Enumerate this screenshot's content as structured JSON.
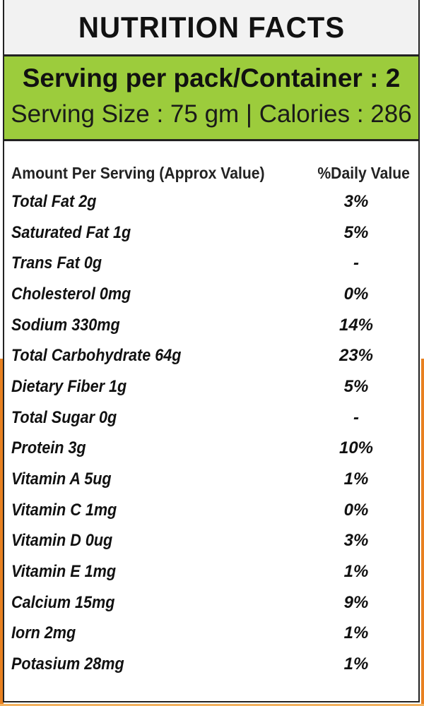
{
  "title": "NUTRITION FACTS",
  "serving": {
    "line1": "Serving per pack/Container : 2",
    "line2": "Serving Size : 75 gm | Calories : 286"
  },
  "table": {
    "header_left": "Amount Per Serving (Approx Value)",
    "header_right": "%Daily Value",
    "rows": [
      {
        "name": "Total Fat 2g",
        "value": "3%"
      },
      {
        "name": "Saturated Fat 1g",
        "value": "5%"
      },
      {
        "name": "Trans Fat 0g",
        "value": "-"
      },
      {
        "name": "Cholesterol 0mg",
        "value": "0%"
      },
      {
        "name": "Sodium 330mg",
        "value": "14%"
      },
      {
        "name": "Total Carbohydrate 64g",
        "value": "23%"
      },
      {
        "name": "Dietary Fiber 1g",
        "value": "5%"
      },
      {
        "name": "Total Sugar 0g",
        "value": "-"
      },
      {
        "name": "Protein 3g",
        "value": "10%"
      },
      {
        "name": "Vitamin A 5ug",
        "value": "1%"
      },
      {
        "name": "Vitamin C 1mg",
        "value": "0%"
      },
      {
        "name": "Vitamin D 0ug",
        "value": "3%"
      },
      {
        "name": "Vitamin E 1mg",
        "value": "1%"
      },
      {
        "name": "Calcium 15mg",
        "value": "9%"
      },
      {
        "name": "Iorn 2mg",
        "value": "1%"
      },
      {
        "name": "Potasium 28mg",
        "value": "1%"
      }
    ]
  },
  "colors": {
    "accent_green": "#9ccc3c",
    "title_bg": "#f2f2f2",
    "edge_orange": "#e8801f"
  }
}
